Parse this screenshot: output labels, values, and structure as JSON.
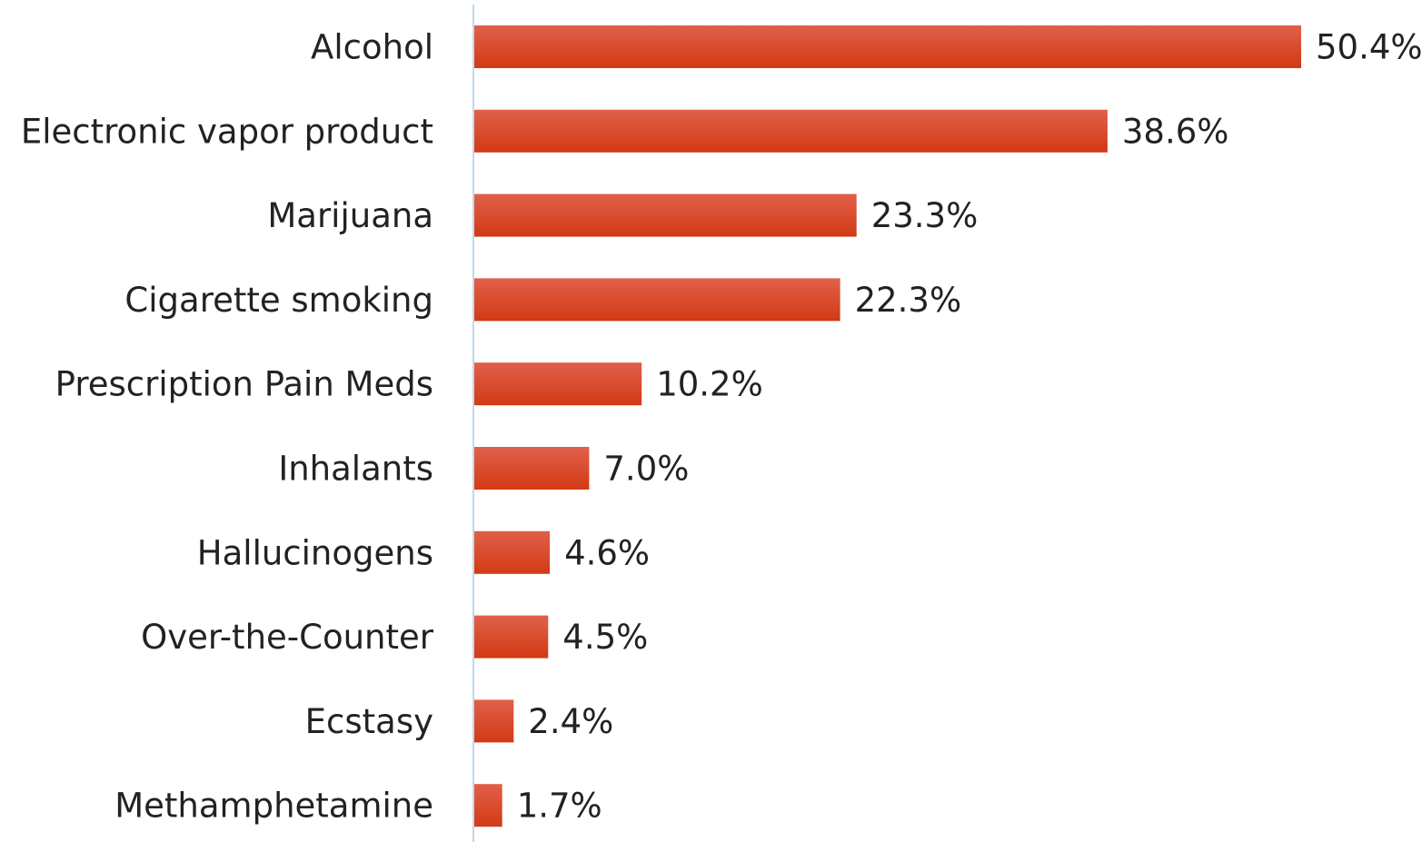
{
  "chart_data": {
    "type": "bar",
    "orientation": "horizontal",
    "title": "",
    "xlabel": "",
    "ylabel": "",
    "categories": [
      "Alcohol",
      "Electronic vapor product",
      "Marijuana",
      "Cigarette smoking",
      "Prescription Pain Meds",
      "Inhalants",
      "Hallucinogens",
      "Over-the-Counter",
      "Ecstasy",
      "Methamphetamine"
    ],
    "values": [
      50.4,
      38.6,
      23.3,
      22.3,
      10.2,
      7.0,
      4.6,
      4.5,
      2.4,
      1.7
    ],
    "value_labels": [
      "50.4%",
      "38.6%",
      "23.3%",
      "22.3%",
      "10.2%",
      "7.0%",
      "4.6%",
      "4.5%",
      "2.4%",
      "1.7%"
    ],
    "xlim": [
      0,
      50.4
    ],
    "grid": false,
    "legend": "none",
    "colors": {
      "bar_top": "#e0604a",
      "bar_bottom": "#d23a14",
      "axis_line": "#bcd9ee",
      "text": "#222222"
    }
  }
}
